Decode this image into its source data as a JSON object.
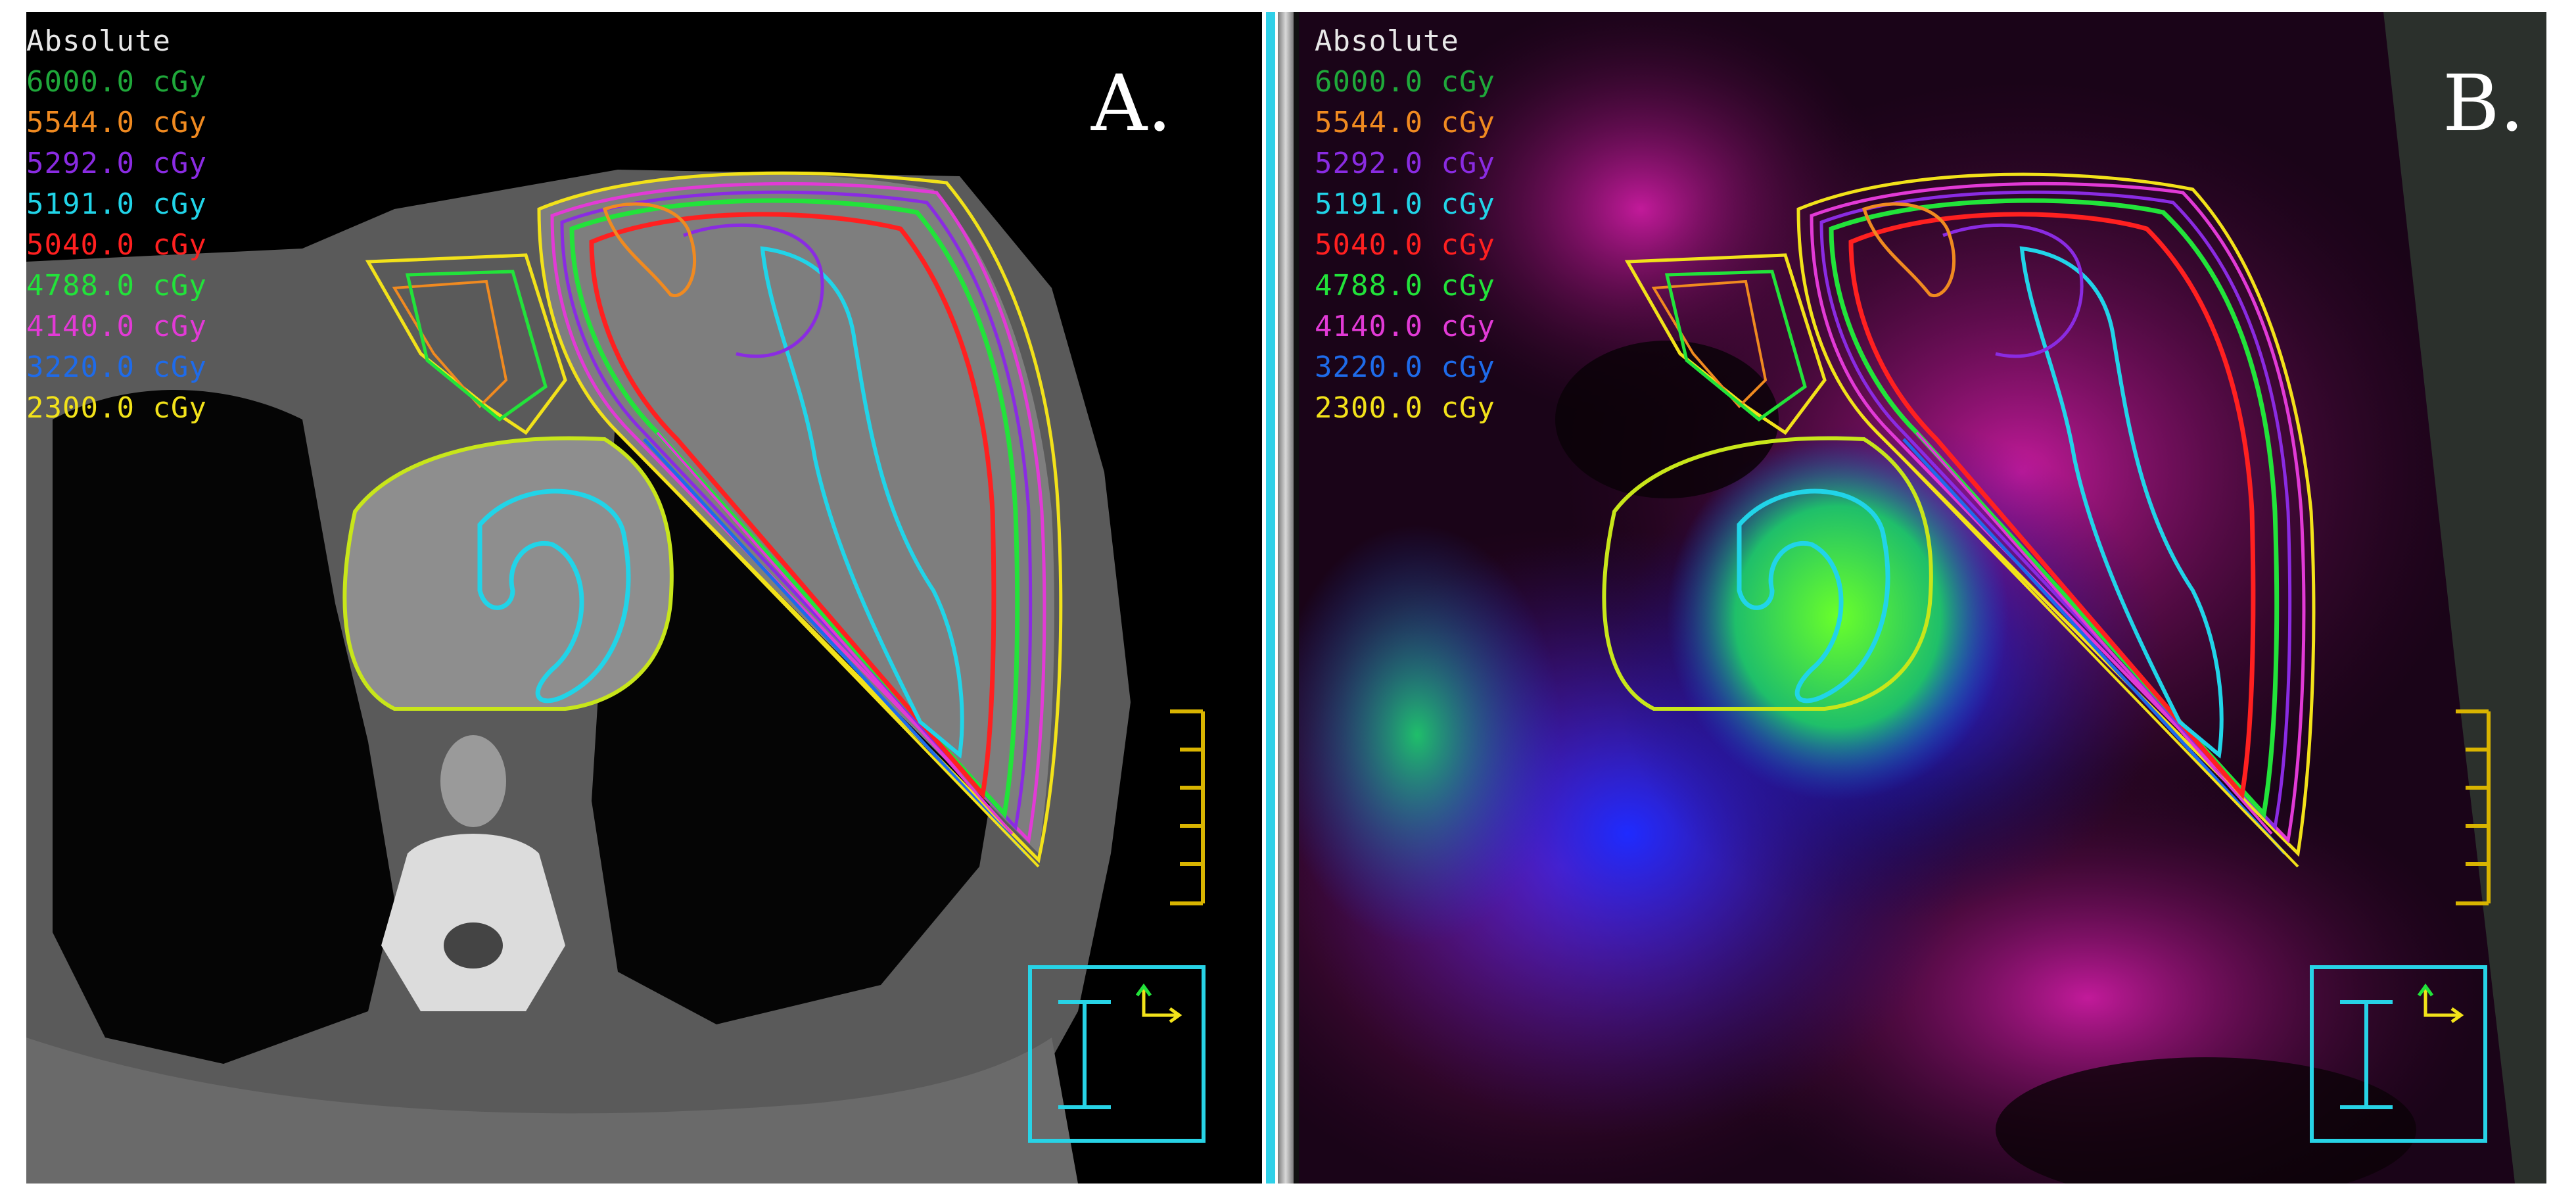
{
  "panels": [
    {
      "id": "A",
      "label": "A.",
      "legend_title": "Absolute",
      "isodose_levels": [
        {
          "value": "6000.0 cGy",
          "color": "#1fa83a"
        },
        {
          "value": "5544.0 cGy",
          "color": "#f08a20"
        },
        {
          "value": "5292.0 cGy",
          "color": "#8a2be2"
        },
        {
          "value": "5191.0 cGy",
          "color": "#21d4e8"
        },
        {
          "value": "5040.0 cGy",
          "color": "#ff2020"
        },
        {
          "value": "4788.0 cGy",
          "color": "#22e33a"
        },
        {
          "value": "4140.0 cGy",
          "color": "#e23ad6"
        },
        {
          "value": "3220.0 cGy",
          "color": "#1e6bea"
        },
        {
          "value": "2300.0 cGy",
          "color": "#f2e21a"
        }
      ]
    },
    {
      "id": "B",
      "label": "B.",
      "legend_title": "Absolute",
      "isodose_levels": [
        {
          "value": "6000.0 cGy",
          "color": "#1fa83a"
        },
        {
          "value": "5544.0 cGy",
          "color": "#f08a20"
        },
        {
          "value": "5292.0 cGy",
          "color": "#8a2be2"
        },
        {
          "value": "5191.0 cGy",
          "color": "#21d4e8"
        },
        {
          "value": "5040.0 cGy",
          "color": "#ff2020"
        },
        {
          "value": "4788.0 cGy",
          "color": "#22e33a"
        },
        {
          "value": "4140.0 cGy",
          "color": "#e23ad6"
        },
        {
          "value": "3220.0 cGy",
          "color": "#1e6bea"
        },
        {
          "value": "2300.0 cGy",
          "color": "#f2e21a"
        }
      ]
    }
  ],
  "colors": {
    "legend_title": "#e8e8e8",
    "scale_bar": "#d9b400",
    "orientation_box": "#27d3e6",
    "orientation_arrow": "#f2e21a",
    "orientation_arrow_tip": "#22e33a"
  },
  "icons": {
    "orientation": "orientation-indicator-icon",
    "scale": "distance-scale-icon"
  }
}
